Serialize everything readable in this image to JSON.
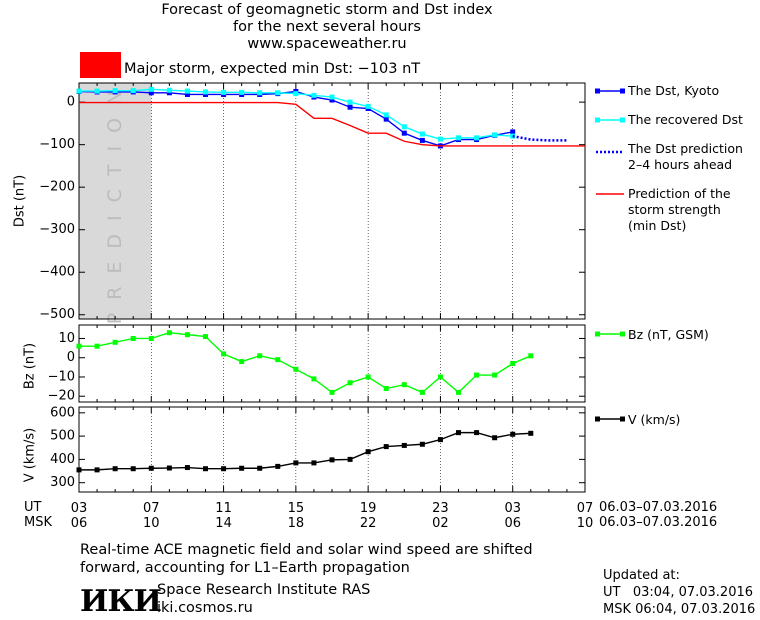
{
  "header": {
    "title_lines": [
      "Forecast of geomagnetic storm and Dst index",
      "for the next several hours",
      "www.spaceweather.ru"
    ],
    "storm_label": "Major storm, expected min Dst: −103 nT",
    "storm_color": "#ff0000"
  },
  "chart_data": [
    {
      "type": "line",
      "ylabel": "Dst (nT)",
      "ylim": [
        -510,
        45
      ],
      "yticks": [
        0,
        -100,
        -200,
        -300,
        -400,
        -500
      ],
      "prediction_label": "PREDICTION",
      "prediction_region_x": [
        3,
        7
      ],
      "series": [
        {
          "name": "The Dst, Kyoto",
          "color": "#0000ff",
          "marker": "square",
          "x": [
            3,
            4,
            5,
            6,
            7,
            8,
            9,
            10,
            11,
            12,
            13,
            14,
            15,
            16,
            17,
            18,
            19,
            20,
            21,
            22,
            23,
            24,
            25,
            26,
            27
          ],
          "values": [
            25,
            24,
            24,
            24,
            22,
            22,
            18,
            18,
            18,
            18,
            18,
            20,
            25,
            12,
            5,
            -12,
            -15,
            -40,
            -73,
            -90,
            -103,
            -88,
            -88,
            -78,
            -70
          ]
        },
        {
          "name": "The recovered Dst",
          "color": "#00ffff",
          "marker": "square",
          "x": [
            3,
            4,
            5,
            6,
            7,
            8,
            9,
            10,
            11,
            12,
            13,
            14,
            15,
            16,
            17,
            18,
            19,
            20,
            21,
            22,
            23,
            24,
            25,
            26,
            27
          ],
          "values": [
            26,
            26,
            27,
            27,
            30,
            28,
            26,
            24,
            23,
            23,
            22,
            22,
            20,
            16,
            12,
            0,
            -10,
            -30,
            -58,
            -75,
            -87,
            -84,
            -84,
            -77,
            -80
          ]
        },
        {
          "name": "The Dst prediction\n2–4 hours ahead",
          "color": "#0000ff",
          "line": "dotted",
          "x": [
            27,
            28,
            29,
            30
          ],
          "values": [
            -80,
            -88,
            -90,
            -90
          ]
        },
        {
          "name": "Prediction of the\nstorm strength\n(min Dst)",
          "color": "#ff0000",
          "x": [
            3,
            14,
            15,
            16,
            17,
            18,
            19,
            20,
            21,
            22,
            23,
            31
          ],
          "values": [
            -1,
            -1,
            -5,
            -38,
            -38,
            -55,
            -73,
            -73,
            -92,
            -100,
            -103,
            -103
          ]
        }
      ]
    },
    {
      "type": "line",
      "ylabel": "Bz (nT)",
      "ylim": [
        -23,
        17
      ],
      "yticks": [
        10,
        0,
        -10,
        -20
      ],
      "series": [
        {
          "name": "Bz (nT, GSM)",
          "color": "#00ff00",
          "marker": "square",
          "x": [
            3,
            4,
            5,
            6,
            7,
            8,
            9,
            10,
            11,
            12,
            13,
            14,
            15,
            16,
            17,
            18,
            19,
            20,
            21,
            22,
            23,
            24,
            25,
            26,
            27,
            28
          ],
          "values": [
            6,
            6,
            8,
            10,
            10,
            13,
            12,
            11,
            2,
            -2,
            1,
            -1,
            -6,
            -11,
            -18,
            -13,
            -10,
            -16,
            -14,
            -18,
            -10,
            -18,
            -9,
            -9,
            -3,
            1
          ]
        }
      ]
    },
    {
      "type": "line",
      "ylabel": "V (km/s)",
      "ylim": [
        260,
        625
      ],
      "yticks": [
        600,
        500,
        400,
        300
      ],
      "series": [
        {
          "name": "V (km/s)",
          "color": "#000000",
          "marker": "square",
          "x": [
            3,
            4,
            5,
            6,
            7,
            8,
            9,
            10,
            11,
            12,
            13,
            14,
            15,
            16,
            17,
            18,
            19,
            20,
            21,
            22,
            23,
            24,
            25,
            26,
            27,
            28
          ],
          "values": [
            355,
            355,
            360,
            360,
            362,
            363,
            365,
            360,
            360,
            362,
            362,
            370,
            385,
            385,
            398,
            400,
            433,
            455,
            460,
            465,
            485,
            515,
            515,
            493,
            508,
            512
          ]
        }
      ]
    }
  ],
  "time_axis": {
    "xlim": [
      3,
      31
    ],
    "ut_label": "UT",
    "msk_label": "MSK",
    "ut_ticks": [
      "03",
      "07",
      "11",
      "15",
      "19",
      "23",
      "03",
      "07"
    ],
    "msk_ticks": [
      "06",
      "10",
      "14",
      "18",
      "22",
      "02",
      "06",
      "10"
    ],
    "ut_range": "06.03–07.03.2016",
    "msk_range": "06.03–07.03.2016"
  },
  "footer": {
    "note_lines": [
      "Real-time ACE magnetic field and solar wind speed are shifted",
      "forward, accounting for L1–Earth propagation"
    ],
    "logo_text": "ИКИ",
    "institute": "Space Research Institute RAS",
    "website": "iki.cosmos.ru",
    "updated": "Updated at:\nUT   03:04, 07.03.2016\nMSK 06:04, 07.03.2016"
  }
}
